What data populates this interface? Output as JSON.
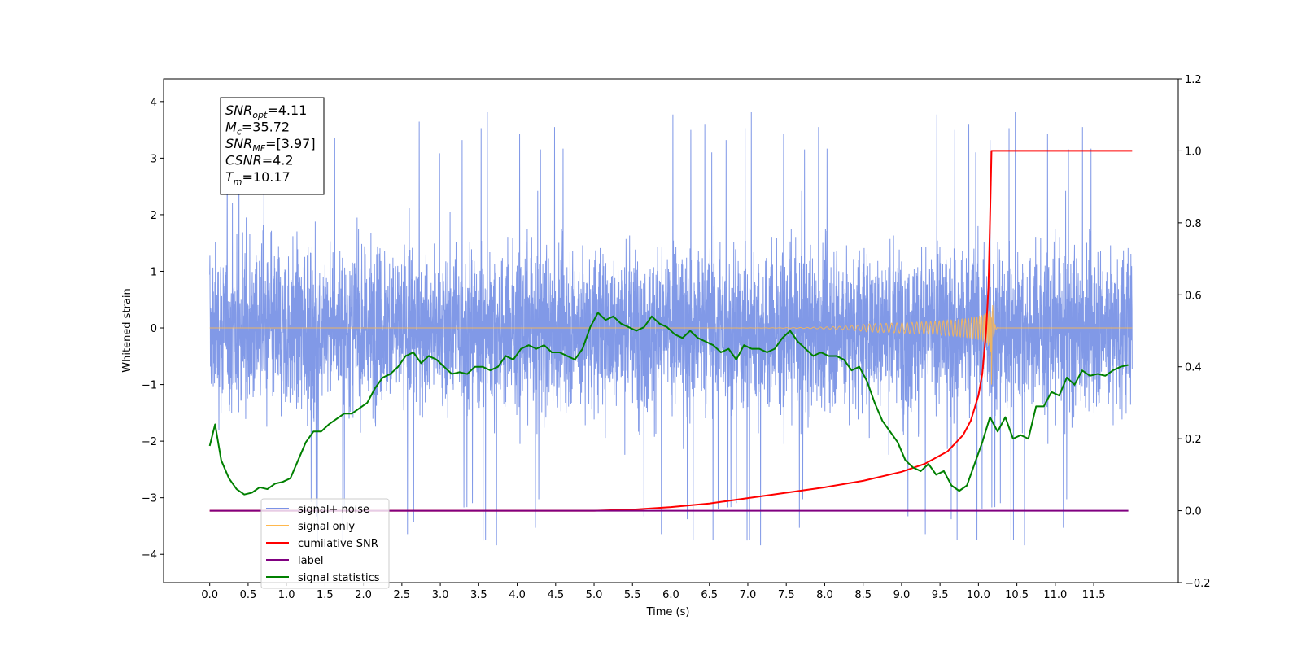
{
  "chart_data": {
    "type": "line",
    "xlabel": "Time (s)",
    "ylabel": "Whitened strain",
    "xlim": [
      -0.6,
      12.6
    ],
    "ylim": [
      -4.5,
      4.4
    ],
    "y2lim": [
      -0.2,
      1.2
    ],
    "x_ticks": [
      "0.0",
      "0.5",
      "1.0",
      "1.5",
      "2.0",
      "2.5",
      "3.0",
      "3.5",
      "4.0",
      "4.5",
      "5.0",
      "5.5",
      "6.0",
      "6.5",
      "7.0",
      "7.5",
      "8.0",
      "8.5",
      "9.0",
      "9.5",
      "10.0",
      "10.5",
      "11.0",
      "11.5"
    ],
    "y_ticks": [
      "4",
      "3",
      "2",
      "1",
      "0",
      "-1",
      "-2",
      "-3",
      "-4"
    ],
    "y2_ticks": [
      "1.2",
      "1.0",
      "0.8",
      "0.6",
      "0.4",
      "0.2",
      "0.0",
      "-0.2"
    ],
    "info_box": {
      "lines": [
        {
          "base": "SNR",
          "sub": "opt",
          "rest": "=4.11"
        },
        {
          "base": "M",
          "sub": "c",
          "rest": "=35.72"
        },
        {
          "base": "SNR",
          "sub": "MF",
          "rest": "=[3.97]"
        },
        {
          "base": "CSNR",
          "sub": "",
          "rest": "=4.2"
        },
        {
          "base": "T",
          "sub": "m",
          "rest": "=10.17"
        }
      ]
    },
    "legend": {
      "placement": "lower-left",
      "entries": [
        {
          "label": "signal+ noise",
          "color": "#7a93e6"
        },
        {
          "label": "signal only",
          "color": "#ffb84d"
        },
        {
          "label": "cumilative SNR",
          "color": "#ff0000"
        },
        {
          "label": "label",
          "color": "#800080"
        },
        {
          "label": "signal statistics",
          "color": "#008000"
        }
      ]
    },
    "series": [
      {
        "name": "signal+ noise",
        "axis": "left",
        "color": "#7a93e6",
        "style": "noise",
        "x_range": [
          0.0,
          12.0
        ],
        "band_sigma": 1.0,
        "peak_range": [
          -4.1,
          3.9
        ]
      },
      {
        "name": "signal only",
        "axis": "left",
        "color": "#ffb84d",
        "style": "chirp",
        "merger_time": 10.17,
        "peak_amplitude": 1.0
      },
      {
        "name": "cumilative SNR",
        "axis": "right",
        "color": "#ff0000",
        "x": [
          0.0,
          5.0,
          5.5,
          6.0,
          6.5,
          7.0,
          7.5,
          8.0,
          8.5,
          9.0,
          9.3,
          9.6,
          9.8,
          9.9,
          10.0,
          10.05,
          10.1,
          10.13,
          10.15,
          10.17,
          12.0
        ],
        "y": [
          0.0,
          0.0,
          0.003,
          0.01,
          0.02,
          0.035,
          0.05,
          0.065,
          0.083,
          0.108,
          0.13,
          0.165,
          0.21,
          0.25,
          0.32,
          0.38,
          0.5,
          0.62,
          0.8,
          1.0,
          1.0
        ]
      },
      {
        "name": "label",
        "axis": "right",
        "color": "#800080",
        "x": [
          0.0,
          11.95
        ],
        "y": [
          0.0,
          0.0
        ]
      },
      {
        "name": "signal statistics",
        "axis": "right",
        "color": "#008000",
        "x": [
          0.0,
          0.07,
          0.15,
          0.25,
          0.35,
          0.45,
          0.55,
          0.65,
          0.75,
          0.85,
          0.95,
          1.05,
          1.15,
          1.25,
          1.35,
          1.45,
          1.55,
          1.65,
          1.75,
          1.85,
          1.95,
          2.05,
          2.15,
          2.25,
          2.35,
          2.45,
          2.55,
          2.65,
          2.75,
          2.85,
          2.95,
          3.05,
          3.15,
          3.25,
          3.35,
          3.45,
          3.55,
          3.65,
          3.75,
          3.85,
          3.95,
          4.05,
          4.15,
          4.25,
          4.35,
          4.45,
          4.55,
          4.65,
          4.75,
          4.85,
          4.95,
          5.05,
          5.15,
          5.25,
          5.35,
          5.45,
          5.55,
          5.65,
          5.75,
          5.85,
          5.95,
          6.05,
          6.15,
          6.25,
          6.35,
          6.45,
          6.55,
          6.65,
          6.75,
          6.85,
          6.95,
          7.05,
          7.15,
          7.25,
          7.35,
          7.45,
          7.55,
          7.65,
          7.75,
          7.85,
          7.95,
          8.05,
          8.15,
          8.25,
          8.35,
          8.45,
          8.55,
          8.65,
          8.75,
          8.85,
          8.95,
          9.05,
          9.15,
          9.25,
          9.35,
          9.45,
          9.55,
          9.65,
          9.75,
          9.85,
          9.95,
          10.05,
          10.15,
          10.25,
          10.35,
          10.45,
          10.55,
          10.65,
          10.75,
          10.85,
          10.95,
          11.05,
          11.15,
          11.25,
          11.35,
          11.45,
          11.55,
          11.65,
          11.75,
          11.85,
          11.95
        ],
        "y": [
          0.18,
          0.24,
          0.14,
          0.09,
          0.06,
          0.045,
          0.05,
          0.065,
          0.06,
          0.075,
          0.08,
          0.09,
          0.14,
          0.19,
          0.22,
          0.22,
          0.24,
          0.255,
          0.27,
          0.27,
          0.285,
          0.3,
          0.34,
          0.37,
          0.38,
          0.4,
          0.43,
          0.44,
          0.41,
          0.43,
          0.42,
          0.4,
          0.38,
          0.385,
          0.38,
          0.4,
          0.4,
          0.39,
          0.4,
          0.43,
          0.42,
          0.45,
          0.46,
          0.45,
          0.46,
          0.44,
          0.44,
          0.43,
          0.42,
          0.45,
          0.51,
          0.55,
          0.53,
          0.54,
          0.52,
          0.51,
          0.5,
          0.51,
          0.54,
          0.52,
          0.51,
          0.49,
          0.48,
          0.5,
          0.48,
          0.47,
          0.46,
          0.44,
          0.45,
          0.42,
          0.46,
          0.45,
          0.45,
          0.44,
          0.45,
          0.48,
          0.5,
          0.47,
          0.45,
          0.43,
          0.44,
          0.43,
          0.43,
          0.42,
          0.39,
          0.4,
          0.36,
          0.3,
          0.25,
          0.22,
          0.19,
          0.14,
          0.12,
          0.11,
          0.13,
          0.1,
          0.11,
          0.07,
          0.055,
          0.07,
          0.13,
          0.19,
          0.26,
          0.22,
          0.26,
          0.2,
          0.21,
          0.2,
          0.29,
          0.29,
          0.33,
          0.32,
          0.37,
          0.35,
          0.39,
          0.375,
          0.38,
          0.375,
          0.39,
          0.4,
          0.405
        ]
      }
    ]
  }
}
